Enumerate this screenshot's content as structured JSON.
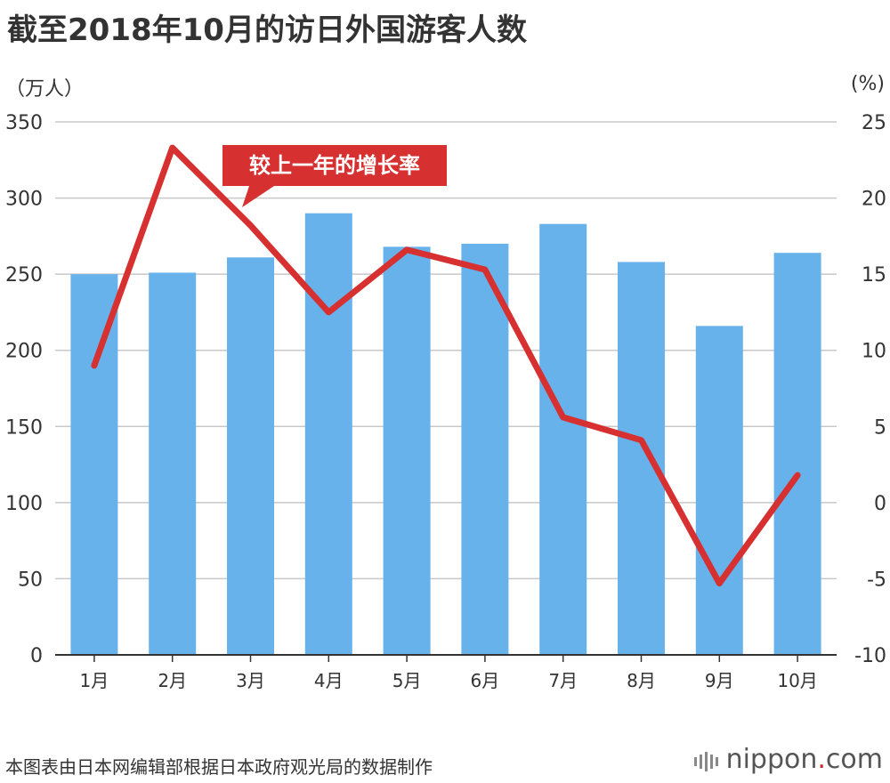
{
  "title": "截至2018年10月的访日外国游客人数",
  "left_unit": "（万人）",
  "right_unit": "(%)",
  "footer": "本图表由日本网编辑部根据日本政府观光局的数据制作",
  "brand": {
    "name": "nippon",
    "sep": ".",
    "tld": "com"
  },
  "colors": {
    "bar": "#68b2ec",
    "line": "#d63030",
    "grid": "#c8c8c8",
    "axis": "#333333",
    "annotation_bg": "#d63030"
  },
  "chart_data": {
    "type": "bar",
    "categories": [
      "1月",
      "2月",
      "3月",
      "4月",
      "5月",
      "6月",
      "7月",
      "8月",
      "9月",
      "10月"
    ],
    "y_left": {
      "label": "（万人）",
      "lim": [
        0,
        350
      ],
      "ticks": [
        "0",
        "50",
        "100",
        "150",
        "200",
        "250",
        "300",
        "350"
      ]
    },
    "y_right": {
      "label": "(%)",
      "lim": [
        -10,
        25
      ],
      "ticks": [
        "-10",
        "-5",
        "0",
        "5",
        "10",
        "15",
        "20",
        "25"
      ]
    },
    "series": [
      {
        "type": "bar",
        "axis": "left",
        "values": [
          250,
          251,
          261,
          290,
          268,
          270,
          283,
          258,
          216,
          264
        ]
      },
      {
        "type": "line",
        "axis": "right",
        "name": "较上一年的增长率",
        "values": [
          9.0,
          23.3,
          18.2,
          12.5,
          16.6,
          15.3,
          5.6,
          4.1,
          -5.3,
          1.8
        ]
      }
    ],
    "annotation": "较上一年的增长率",
    "grid": true
  }
}
